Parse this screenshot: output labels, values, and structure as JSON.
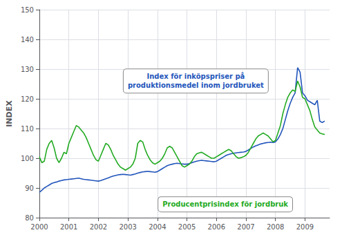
{
  "chart_data": {
    "type": "line",
    "ylabel": "INDEX",
    "xlim": [
      2000.0,
      2009.833
    ],
    "ylim": [
      80,
      150
    ],
    "xticks": [
      2000,
      2001,
      2002,
      2003,
      2004,
      2005,
      2006,
      2007,
      2008,
      2009
    ],
    "yticks": [
      80,
      90,
      100,
      110,
      120,
      130,
      140,
      150
    ],
    "grid": true,
    "x": [
      2000,
      2000.0833333333333,
      2000.1666666666667,
      2000.25,
      2000.3333333333333,
      2000.4166666666667,
      2000.5,
      2000.5833333333333,
      2000.6666666666667,
      2000.75,
      2000.8333333333333,
      2000.9166666666667,
      2001,
      2001.0833333333333,
      2001.1666666666667,
      2001.25,
      2001.3333333333333,
      2001.4166666666667,
      2001.5,
      2001.5833333333333,
      2001.6666666666667,
      2001.75,
      2001.8333333333333,
      2001.9166666666667,
      2002,
      2002.0833333333333,
      2002.1666666666667,
      2002.25,
      2002.3333333333333,
      2002.4166666666667,
      2002.5,
      2002.5833333333333,
      2002.6666666666667,
      2002.75,
      2002.8333333333333,
      2002.9166666666667,
      2003,
      2003.0833333333333,
      2003.1666666666667,
      2003.25,
      2003.3333333333333,
      2003.4166666666667,
      2003.5,
      2003.5833333333333,
      2003.6666666666667,
      2003.75,
      2003.8333333333333,
      2003.9166666666667,
      2004,
      2004.0833333333333,
      2004.1666666666667,
      2004.25,
      2004.3333333333333,
      2004.4166666666667,
      2004.5,
      2004.5833333333333,
      2004.6666666666667,
      2004.75,
      2004.8333333333333,
      2004.9166666666667,
      2005,
      2005.0833333333333,
      2005.1666666666667,
      2005.25,
      2005.3333333333333,
      2005.4166666666667,
      2005.5,
      2005.5833333333333,
      2005.6666666666667,
      2005.75,
      2005.8333333333333,
      2005.9166666666667,
      2006,
      2006.0833333333333,
      2006.1666666666667,
      2006.25,
      2006.3333333333333,
      2006.4166666666667,
      2006.5,
      2006.5833333333333,
      2006.6666666666667,
      2006.75,
      2006.8333333333333,
      2006.9166666666667,
      2007,
      2007.0833333333333,
      2007.1666666666667,
      2007.25,
      2007.3333333333333,
      2007.4166666666667,
      2007.5,
      2007.5833333333333,
      2007.6666666666667,
      2007.75,
      2007.8333333333333,
      2007.9166666666667,
      2008,
      2008.0833333333333,
      2008.1666666666667,
      2008.25,
      2008.3333333333333,
      2008.4166666666667,
      2008.5,
      2008.5833333333333,
      2008.6666666666667,
      2008.75,
      2008.8333333333333,
      2008.9166666666667,
      2009,
      2009.0833333333333,
      2009.1666666666667,
      2009.25,
      2009.3333333333333,
      2009.4166666666667,
      2009.5,
      2009.5833333333333,
      2009.6666666666667
    ],
    "series": [
      {
        "color": "#2255BB",
        "values": [
          88.5,
          89.2,
          90.0,
          90.5,
          91.0,
          91.5,
          91.8,
          92.0,
          92.3,
          92.5,
          92.7,
          92.8,
          92.9,
          93.0,
          93.1,
          93.2,
          93.3,
          93.1,
          92.9,
          92.8,
          92.7,
          92.6,
          92.5,
          92.4,
          92.3,
          92.5,
          92.8,
          93.1,
          93.4,
          93.7,
          94.0,
          94.2,
          94.4,
          94.5,
          94.6,
          94.5,
          94.4,
          94.3,
          94.5,
          94.7,
          95.0,
          95.2,
          95.4,
          95.5,
          95.6,
          95.5,
          95.4,
          95.3,
          95.5,
          96.0,
          96.5,
          97.0,
          97.5,
          97.8,
          98.0,
          98.2,
          98.3,
          98.2,
          98.1,
          98.0,
          98.0,
          98.2,
          98.5,
          98.8,
          99.0,
          99.2,
          99.3,
          99.2,
          99.1,
          99.0,
          98.9,
          98.8,
          99.0,
          99.5,
          100.0,
          100.5,
          101.0,
          101.3,
          101.5,
          101.7,
          101.8,
          101.9,
          102.0,
          102.1,
          102.3,
          102.8,
          103.3,
          103.8,
          104.2,
          104.5,
          104.8,
          105.0,
          105.2,
          105.3,
          105.4,
          105.3,
          105.5,
          106.5,
          108.0,
          110.0,
          113.0,
          116.0,
          118.5,
          120.5,
          122.0,
          130.5,
          129.0,
          122.0,
          121.0,
          119.5,
          119.0,
          118.5,
          118.0,
          119.5,
          112.5,
          112.0,
          112.5
        ]
      },
      {
        "color": "#22AA22",
        "values": [
          100.5,
          98.5,
          99.0,
          103.0,
          105.0,
          106.0,
          103.5,
          100.0,
          98.5,
          100.0,
          102.0,
          101.5,
          105.0,
          107.0,
          109.0,
          111.0,
          110.5,
          109.5,
          108.5,
          107.0,
          105.0,
          103.0,
          101.0,
          99.5,
          99.0,
          101.0,
          103.0,
          105.0,
          104.5,
          103.0,
          101.0,
          99.5,
          98.0,
          97.0,
          96.5,
          96.0,
          96.5,
          97.0,
          98.0,
          100.0,
          105.0,
          106.0,
          105.5,
          103.0,
          101.0,
          99.5,
          98.5,
          98.0,
          98.5,
          99.0,
          100.0,
          101.5,
          103.5,
          104.0,
          103.5,
          102.0,
          100.5,
          99.0,
          97.5,
          97.0,
          97.5,
          98.0,
          99.0,
          100.5,
          101.5,
          101.8,
          102.0,
          101.5,
          101.0,
          100.5,
          100.0,
          100.0,
          100.5,
          101.0,
          101.5,
          102.0,
          102.5,
          103.0,
          102.5,
          101.5,
          100.5,
          100.0,
          100.2,
          100.5,
          101.0,
          102.0,
          103.5,
          105.0,
          106.5,
          107.5,
          108.0,
          108.5,
          108.0,
          107.5,
          106.5,
          105.5,
          106.0,
          108.5,
          111.0,
          115.0,
          118.0,
          120.5,
          122.0,
          123.0,
          122.5,
          126.0,
          124.0,
          120.5,
          120.0,
          118.0,
          116.0,
          113.0,
          110.5,
          109.5,
          108.5,
          108.2,
          108.0
        ]
      }
    ],
    "annotations": [
      {
        "text": "Index för inköpspriser på\nproduktionsmedel inom jordbruket",
        "x": 2005.3,
        "y": 126.0,
        "color": "#2255BB"
      },
      {
        "text": "Producentprisindex för jordbruk",
        "x": 2006.3,
        "y": 84.5,
        "color": "#22AA22"
      }
    ]
  }
}
